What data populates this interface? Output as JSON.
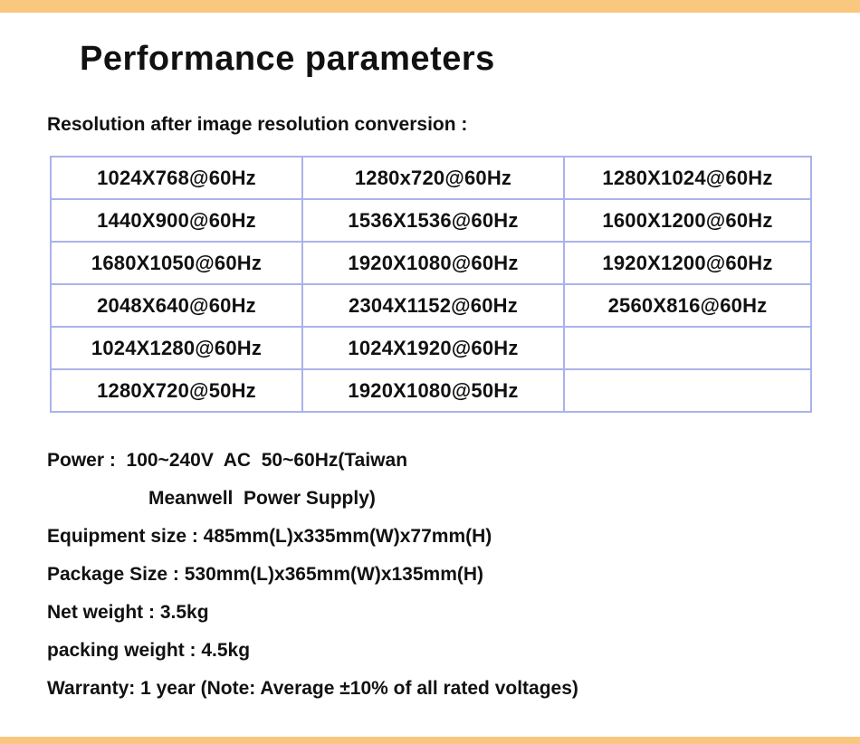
{
  "page": {
    "title": "Performance parameters",
    "subtitle": "Resolution after image resolution conversion :"
  },
  "colors": {
    "accent_bar": "#f9c77d",
    "table_border": "#a9b3ea",
    "text": "#111111"
  },
  "resolution_table": {
    "rows": [
      [
        "1024X768@60Hz",
        "1280x720@60Hz",
        "1280X1024@60Hz"
      ],
      [
        "1440X900@60Hz",
        "1536X1536@60Hz",
        "1600X1200@60Hz"
      ],
      [
        "1680X1050@60Hz",
        "1920X1080@60Hz",
        "1920X1200@60Hz"
      ],
      [
        "2048X640@60Hz",
        "2304X1152@60Hz",
        "2560X816@60Hz"
      ],
      [
        "1024X1280@60Hz",
        "1024X1920@60Hz",
        ""
      ],
      [
        "1280X720@50Hz",
        "1920X1080@50Hz",
        ""
      ]
    ]
  },
  "specs": {
    "power_line1": "Power :  100~240V  AC  50~60Hz(Taiwan",
    "power_line2": "Meanwell  Power Supply)",
    "equipment_size": "Equipment size : 485mm(L)x335mm(W)x77mm(H)",
    "package_size": "Package Size : 530mm(L)x365mm(W)x135mm(H)",
    "net_weight": "Net weight : 3.5kg",
    "packing_weight": "packing weight : 4.5kg",
    "warranty": "Warranty: 1 year (Note: Average ±10% of all rated voltages)"
  }
}
